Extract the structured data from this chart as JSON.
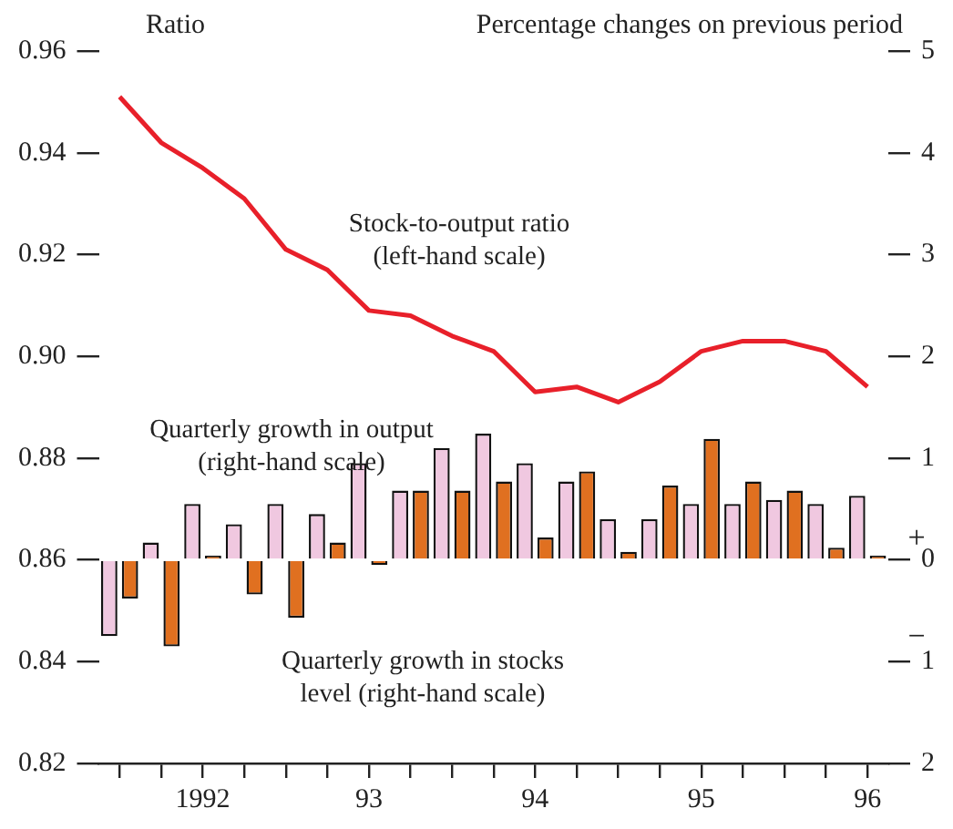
{
  "chart_data": {
    "type": "bar",
    "ylabel": "Ratio",
    "y2label": "Percentage changes on previous period",
    "categories": [
      null,
      null,
      "1992",
      null,
      null,
      null,
      "93",
      null,
      null,
      null,
      "94",
      null,
      null,
      null,
      "95",
      null,
      null,
      null,
      "96"
    ],
    "series": [
      {
        "name": "Stock-to-output ratio (left-hand scale)",
        "type": "line",
        "color": "#e8202a",
        "values": [
          0.951,
          0.942,
          0.937,
          0.931,
          0.921,
          0.917,
          0.909,
          0.908,
          0.904,
          0.901,
          0.893,
          0.894,
          0.891,
          0.895,
          0.901,
          0.903,
          0.903,
          0.901,
          0.894
        ]
      },
      {
        "name": "Quarterly growth in output (right-hand scale)",
        "axis": "y2",
        "color": "#f0c8e0",
        "values": [
          -0.75,
          0.17,
          0.55,
          0.35,
          0.55,
          0.45,
          0.95,
          0.68,
          1.1,
          1.24,
          0.95,
          0.77,
          0.4,
          0.4,
          0.55,
          0.55,
          0.59,
          0.55,
          0.63
        ]
      },
      {
        "name": "Quarterly growth in stocks level (right-hand scale)",
        "axis": "y2",
        "color": "#e07020",
        "values": [
          -0.38,
          -0.85,
          0.04,
          -0.34,
          -0.57,
          0.17,
          -0.05,
          0.68,
          0.68,
          0.77,
          0.22,
          0.87,
          0.08,
          0.73,
          1.19,
          0.77,
          0.68,
          0.12,
          0.04
        ]
      }
    ],
    "ylim": [
      0.82,
      0.96
    ],
    "yticks": [
      {
        "value": 0.82,
        "label": "0.82"
      },
      {
        "value": 0.84,
        "label": "0.84"
      },
      {
        "value": 0.86,
        "label": "0.86"
      },
      {
        "value": 0.88,
        "label": "0.88"
      },
      {
        "value": 0.9,
        "label": "0.90"
      },
      {
        "value": 0.92,
        "label": "0.92"
      },
      {
        "value": 0.94,
        "label": "0.94"
      },
      {
        "value": 0.96,
        "label": "0.96"
      }
    ],
    "y2lim": [
      -2,
      5
    ],
    "y2ticks": [
      {
        "value": -2,
        "label": "2"
      },
      {
        "value": -1,
        "label": "1"
      },
      0,
      1,
      2,
      3,
      4,
      5
    ],
    "annotations": [
      "+",
      "−"
    ],
    "grid": false,
    "legend": false,
    "marker": "none",
    "line_style": "solid"
  }
}
